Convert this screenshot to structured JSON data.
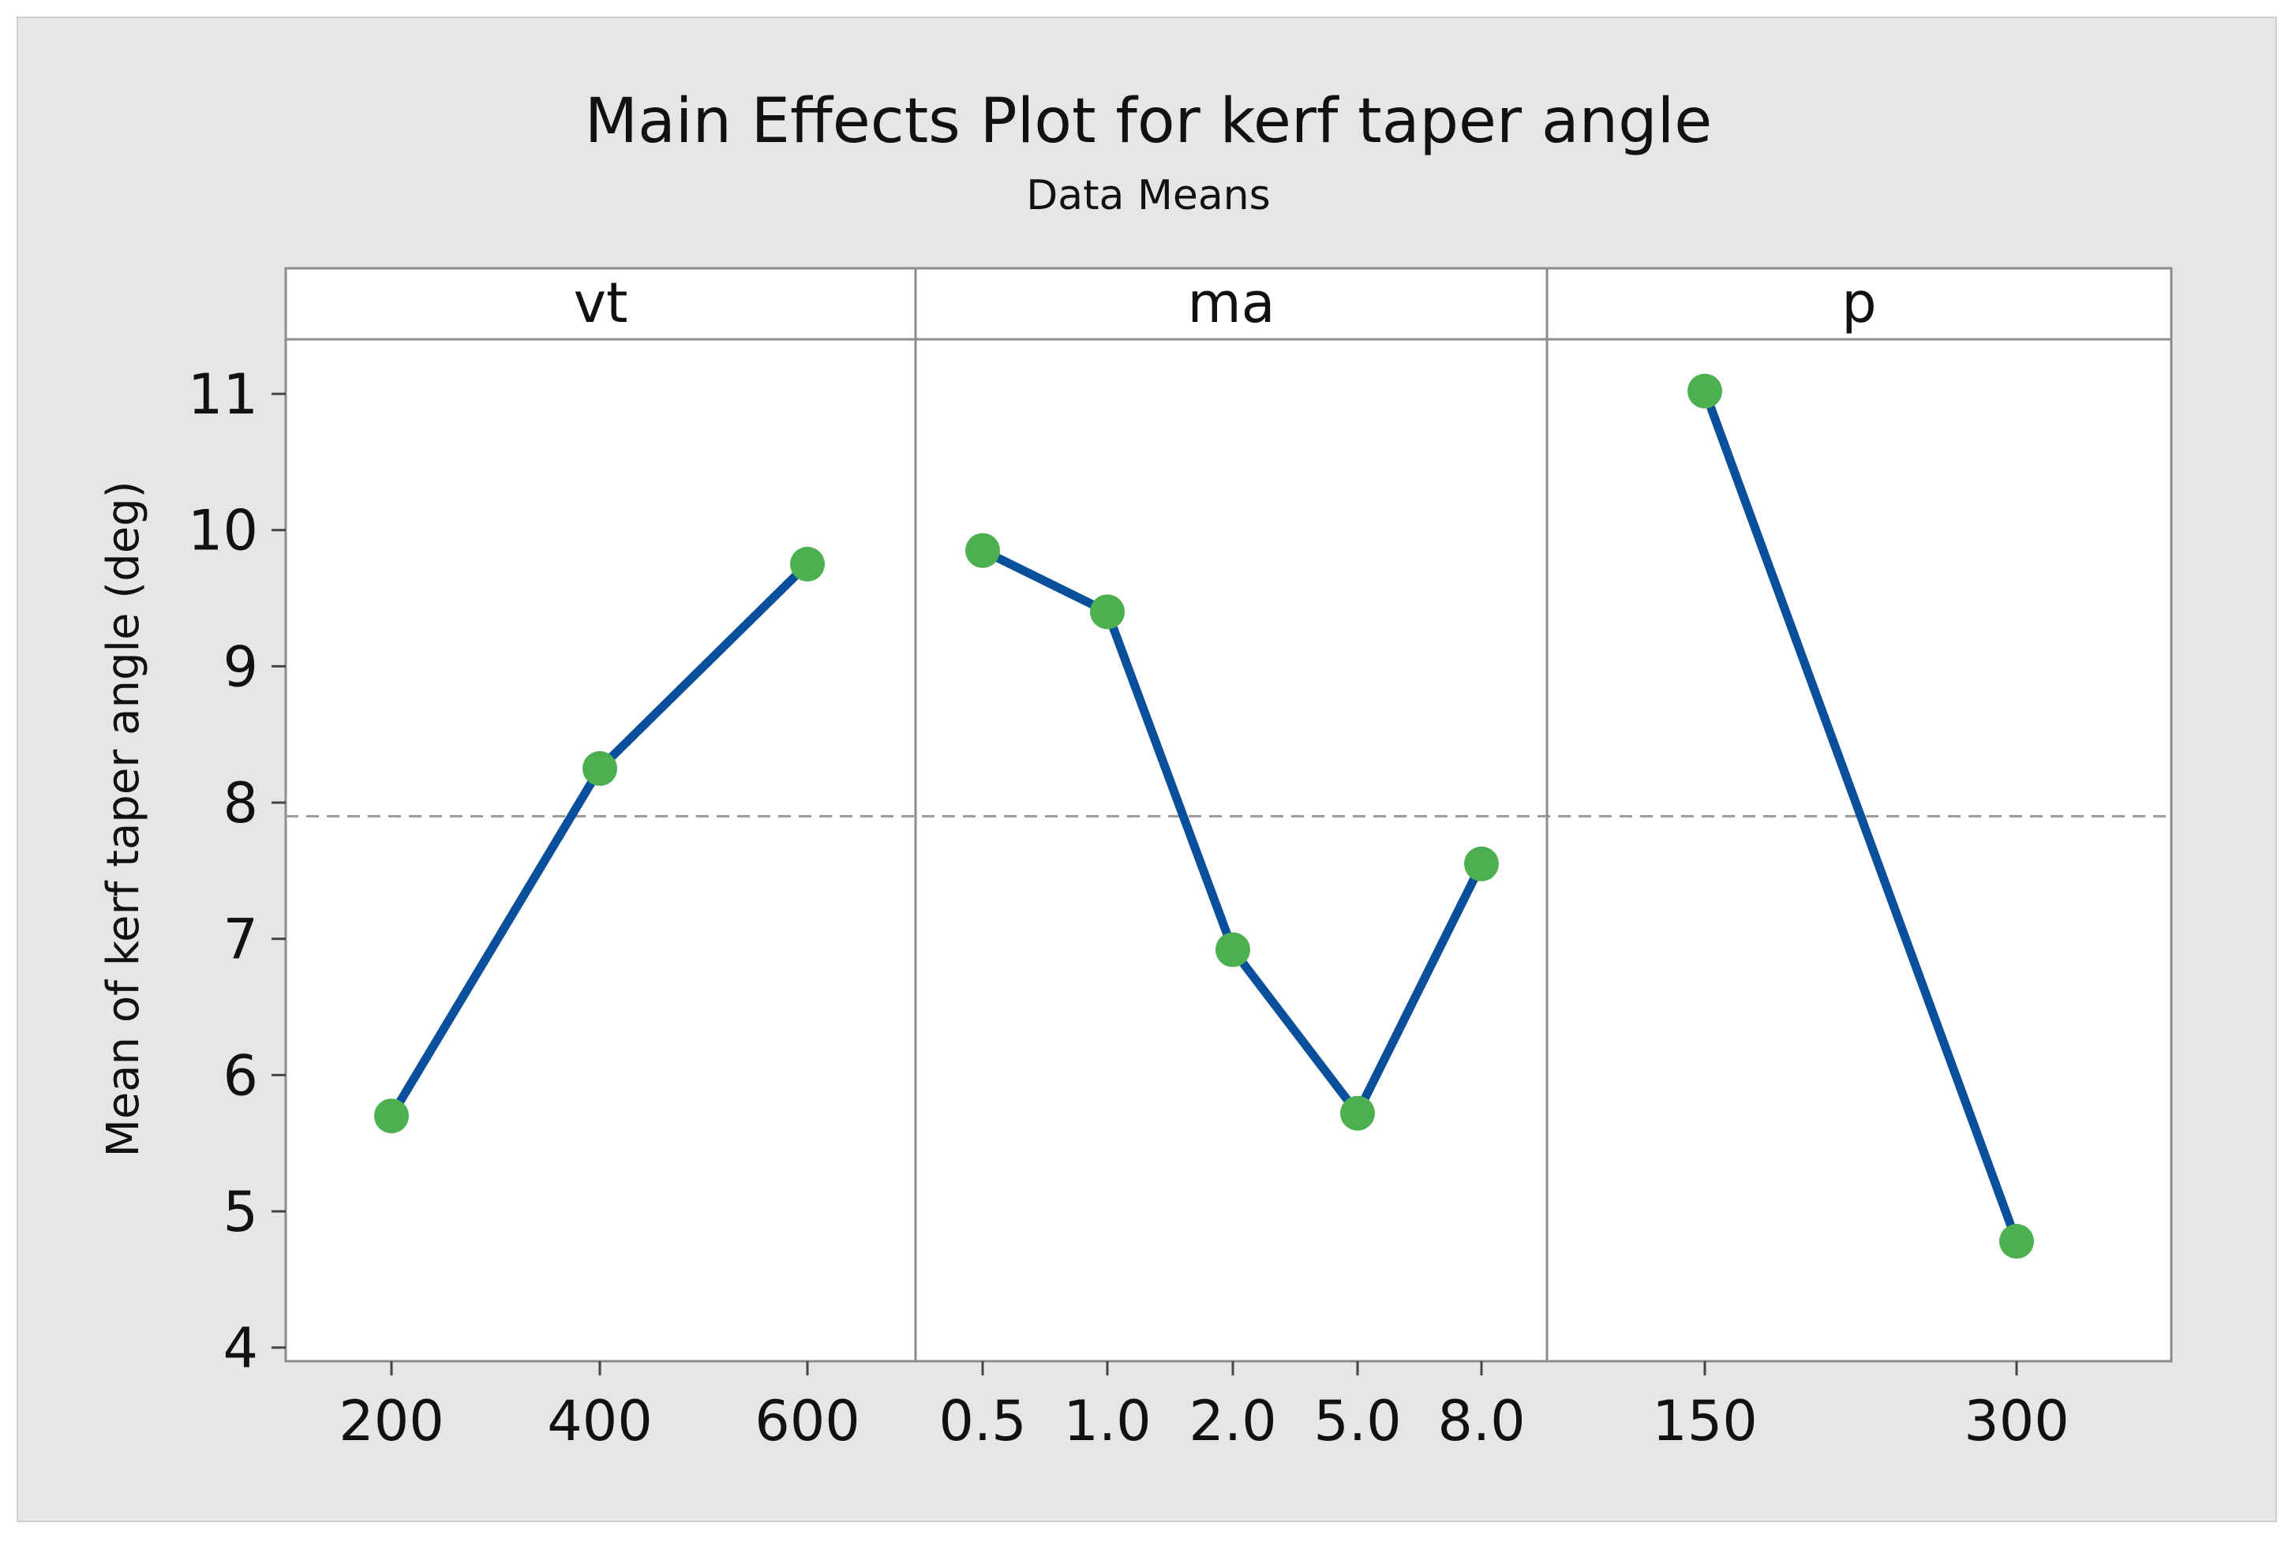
{
  "chart_data": {
    "type": "line",
    "title": "Main Effects Plot for kerf taper angle",
    "subtitle": "Data Means",
    "ylabel": "Mean of kerf taper angle (deg)",
    "ylim": [
      3.9,
      11.4
    ],
    "yticks": [
      "4",
      "5",
      "6",
      "7",
      "8",
      "9",
      "10",
      "11"
    ],
    "reference_mean": 7.9,
    "grid": false,
    "colors": {
      "outer_background": "#e6e6e6",
      "plot_background": "#ffffff",
      "line": "#0a4f9c",
      "marker": "#4caf50",
      "reference_line": "#9a9a9a",
      "frame": "#8c8c8c"
    },
    "panels": [
      {
        "factor": "vt",
        "levels": [
          "200",
          "400",
          "600"
        ],
        "values": [
          5.7,
          8.25,
          9.75
        ]
      },
      {
        "factor": "ma",
        "levels": [
          "0.5",
          "1.0",
          "2.0",
          "5.0",
          "8.0"
        ],
        "values": [
          9.85,
          9.4,
          6.92,
          5.72,
          7.55
        ]
      },
      {
        "factor": "p",
        "levels": [
          "150",
          "300"
        ],
        "values": [
          11.02,
          4.78
        ]
      }
    ]
  }
}
